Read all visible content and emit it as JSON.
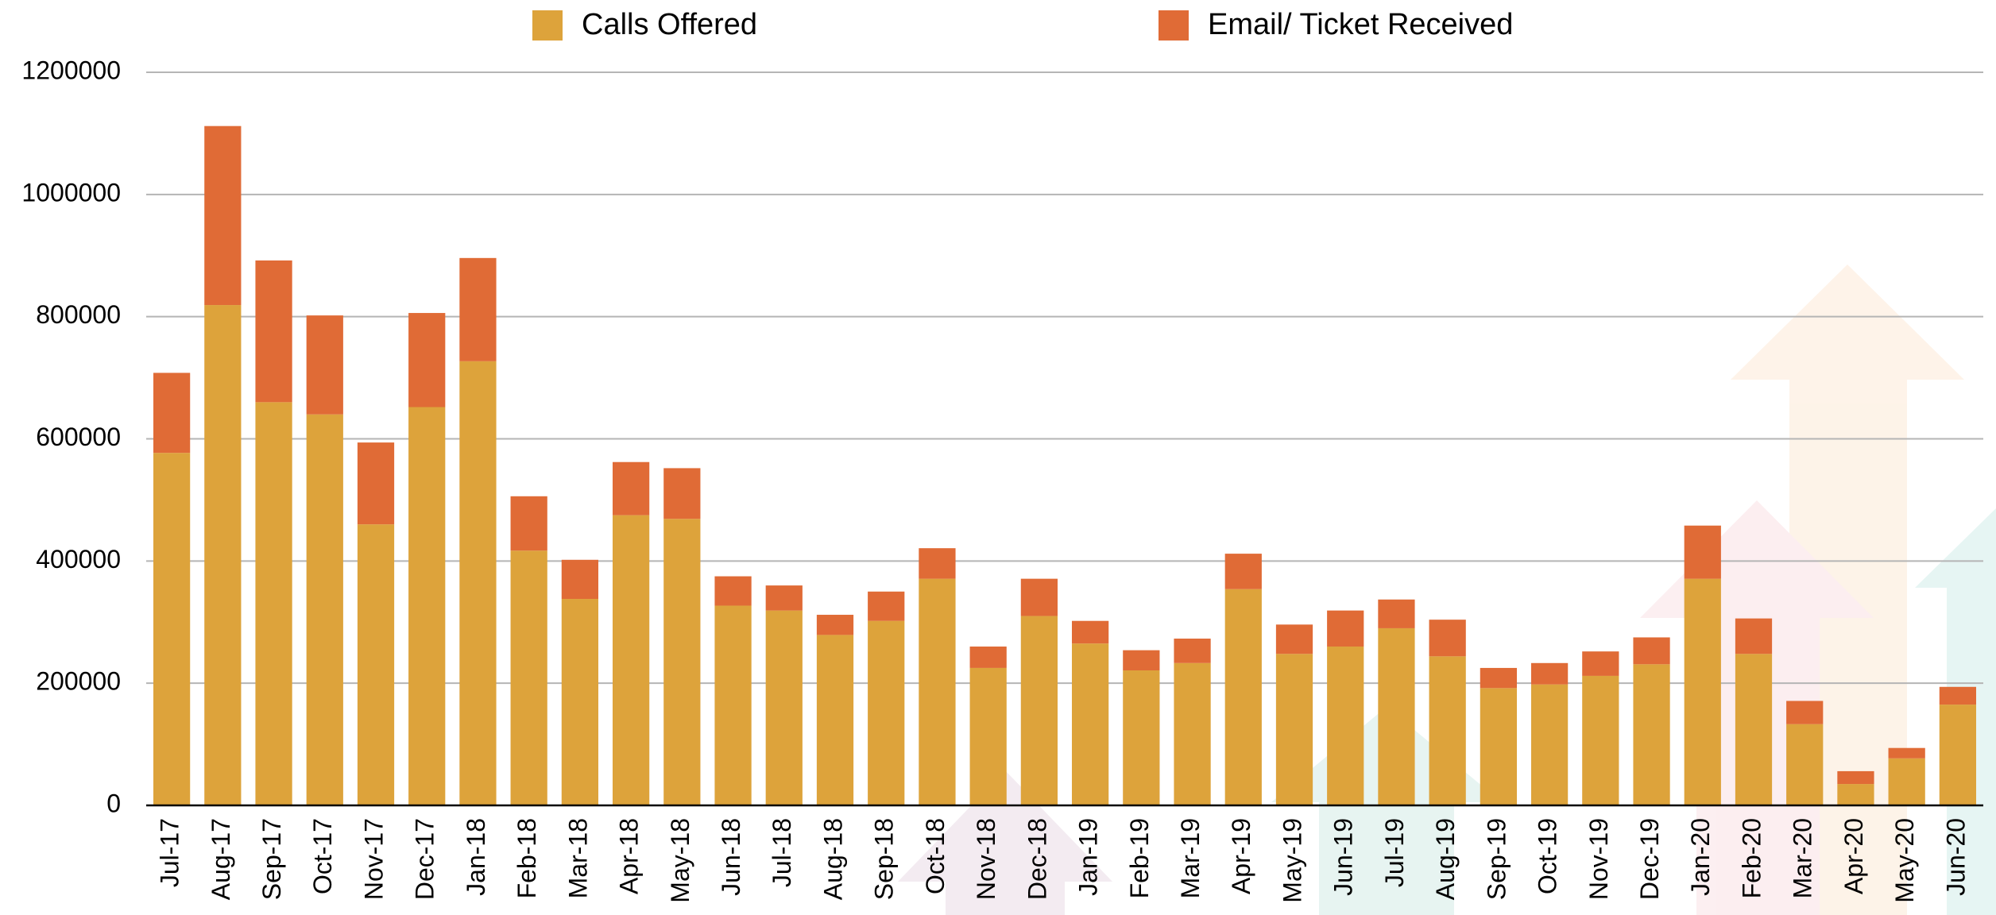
{
  "chart_data": {
    "type": "stacked_bar",
    "categories": [
      "Jul-17",
      "Aug-17",
      "Sep-17",
      "Oct-17",
      "Nov-17",
      "Dec-17",
      "Jan-18",
      "Feb-18",
      "Mar-18",
      "Apr-18",
      "May-18",
      "Jun-18",
      "Jul-18",
      "Aug-18",
      "Sep-18",
      "Oct-18",
      "Nov-18",
      "Dec-18",
      "Jan-19",
      "Feb-19",
      "Mar-19",
      "Apr-19",
      "May-19",
      "Jun-19",
      "Jul-19",
      "Aug-19",
      "Sep-19",
      "Oct-19",
      "Nov-19",
      "Dec-19",
      "Jan-20",
      "Feb-20",
      "Mar-20",
      "Apr-20",
      "May-20",
      "Jun-20"
    ],
    "series": [
      {
        "name": "Calls Offered",
        "color": "#dda33b",
        "values": [
          577000,
          819000,
          660000,
          640000,
          460000,
          652000,
          727000,
          417000,
          338000,
          475000,
          469000,
          327000,
          319000,
          279000,
          302000,
          371000,
          225000,
          310000,
          265000,
          221000,
          233000,
          354000,
          248000,
          260000,
          290000,
          244000,
          192000,
          198000,
          212000,
          231000,
          371000,
          248000,
          133000,
          35000,
          77000,
          165000
        ]
      },
      {
        "name": "Email/ Ticket Received",
        "color": "#e06b36",
        "values": [
          131000,
          293000,
          232000,
          162000,
          134000,
          154000,
          169000,
          89000,
          64000,
          87000,
          83000,
          48000,
          41000,
          33000,
          48000,
          50000,
          35000,
          61000,
          37000,
          33000,
          40000,
          58000,
          48000,
          59000,
          47000,
          60000,
          33000,
          35000,
          40000,
          44000,
          87000,
          58000,
          38000,
          21000,
          17000,
          29000
        ]
      }
    ],
    "ylim": [
      0,
      1200000
    ],
    "yticks": [
      0,
      200000,
      400000,
      600000,
      800000,
      1000000,
      1200000
    ],
    "grid": true
  }
}
